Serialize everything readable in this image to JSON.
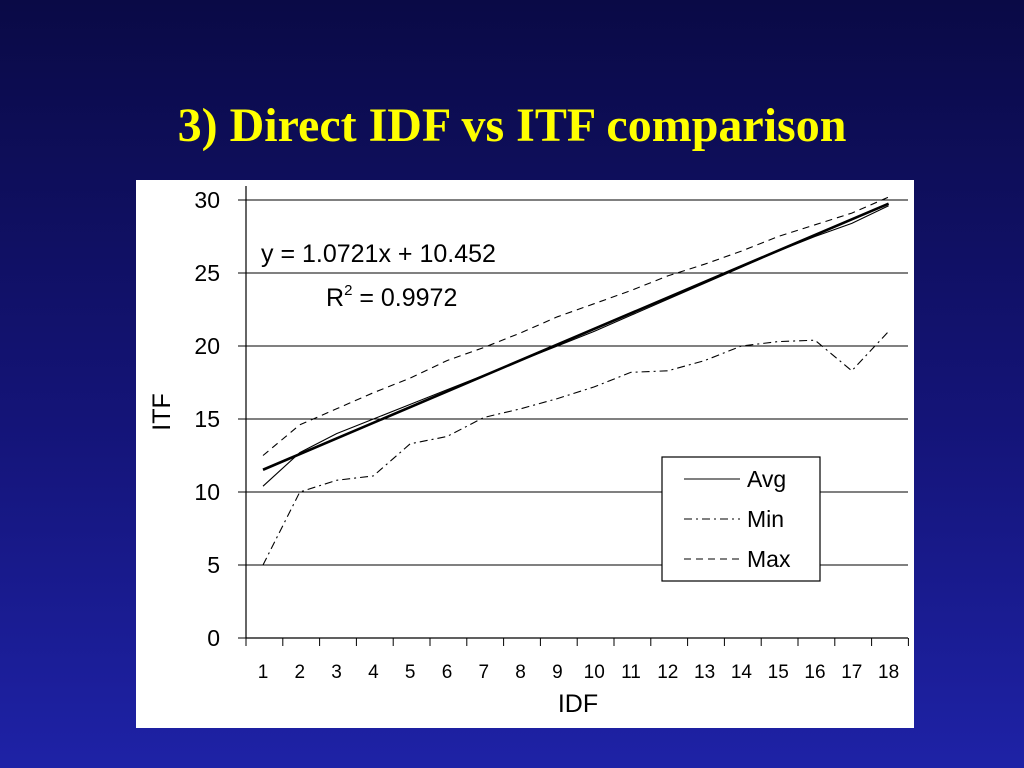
{
  "slide": {
    "title": "3) Direct IDF vs ITF comparison"
  },
  "chart_data": {
    "type": "line",
    "xlabel": "IDF",
    "ylabel": "ITF",
    "x": [
      1,
      2,
      3,
      4,
      5,
      6,
      7,
      8,
      9,
      10,
      11,
      12,
      13,
      14,
      15,
      16,
      17,
      18
    ],
    "xtick_labels": [
      "1",
      "2",
      "3",
      "4",
      "5",
      "6",
      "7",
      "8",
      "9",
      "10",
      "11",
      "12",
      "13",
      "14",
      "15",
      "16",
      "17",
      "18"
    ],
    "ylim": [
      0,
      30
    ],
    "yticks": [
      0,
      5,
      10,
      15,
      20,
      25,
      30
    ],
    "ytick_labels": [
      "0",
      "5",
      "10",
      "15",
      "20",
      "25",
      "30"
    ],
    "grid": "horizontal",
    "legend_position": "bottom-right",
    "series": [
      {
        "name": "Avg",
        "style": "solid",
        "values": [
          10.4,
          12.7,
          14.0,
          15.0,
          16.0,
          17.0,
          18.0,
          19.0,
          20.0,
          21.0,
          22.1,
          23.2,
          24.3,
          25.4,
          26.5,
          27.5,
          28.4,
          29.6
        ]
      },
      {
        "name": "Min",
        "style": "dash-dot",
        "values": [
          5.0,
          10.0,
          10.8,
          11.1,
          13.3,
          13.8,
          15.1,
          15.7,
          16.4,
          17.2,
          18.2,
          18.3,
          19.0,
          20.0,
          20.3,
          20.4,
          18.3,
          21.0
        ]
      },
      {
        "name": "Max",
        "style": "dashed",
        "values": [
          12.5,
          14.6,
          15.7,
          16.8,
          17.8,
          19.0,
          19.9,
          20.9,
          22.0,
          22.9,
          23.8,
          24.8,
          25.6,
          26.5,
          27.5,
          28.3,
          29.1,
          30.2
        ]
      }
    ],
    "trendline": {
      "type": "linear",
      "slope": 1.0721,
      "intercept": 10.452,
      "equation_text": "y = 1.0721x + 10.452",
      "r2_prefix": "R",
      "r2_sup": "2",
      "r2_rest": " = 0.9972"
    }
  }
}
